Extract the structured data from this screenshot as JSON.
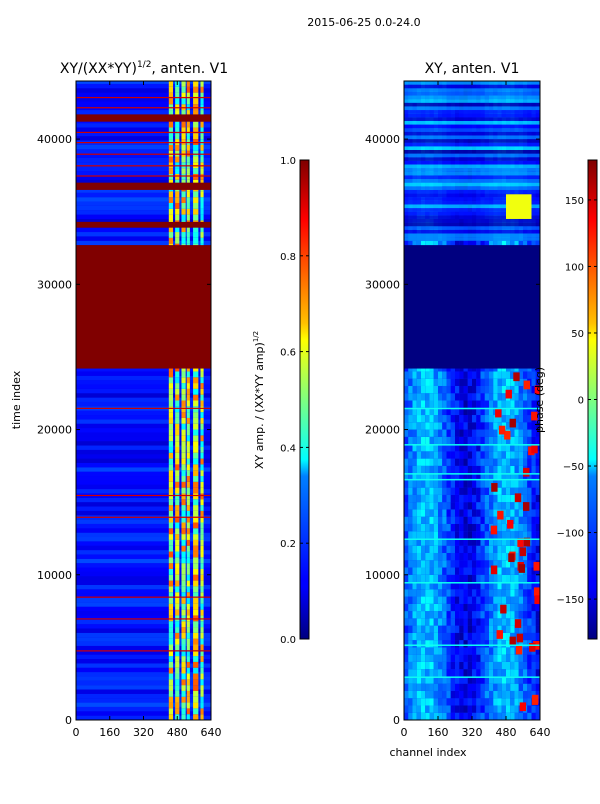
{
  "suptitle": "2015-06-25 0.0-24.0",
  "chart_data": [
    {
      "type": "heatmap",
      "title": "XY/(XX*YY)^{1/2}, anten. V1",
      "title_main": "XY/(XX*YY)",
      "title_sup": "1/2",
      "title_tail": ", anten. V1",
      "xlabel": "",
      "ylabel": "time index",
      "xlim": [
        0,
        640
      ],
      "ylim": [
        0,
        44000
      ],
      "xticks": [
        "0",
        "160",
        "320",
        "480",
        "640"
      ],
      "xtick_values": [
        0,
        160,
        320,
        480,
        640
      ],
      "yticks": [
        "0",
        "10000",
        "20000",
        "30000",
        "40000"
      ],
      "ytick_values": [
        0,
        10000,
        20000,
        30000,
        40000
      ],
      "colorbar": {
        "label_main": "XY amp. / (XX*YY amp)",
        "label_sup": "1/2",
        "range": [
          0.0,
          1.0
        ],
        "ticks": [
          "0.0",
          "0.2",
          "0.4",
          "0.6",
          "0.8",
          "1.0"
        ],
        "tick_values": [
          0.0,
          0.2,
          0.4,
          0.6,
          0.8,
          1.0
        ]
      },
      "saturated_time_bands": [
        [
          24200,
          32700
        ],
        [
          36500,
          37000
        ],
        [
          41200,
          41700
        ],
        [
          33900,
          34300
        ]
      ],
      "background_level": 0.1,
      "band_level": 1.0
    },
    {
      "type": "heatmap",
      "title": "XY, anten. V1",
      "xlabel": "channel index",
      "ylabel": "",
      "xlim": [
        0,
        640
      ],
      "ylim": [
        0,
        44000
      ],
      "xticks": [
        "0",
        "160",
        "320",
        "480",
        "640"
      ],
      "xtick_values": [
        0,
        160,
        320,
        480,
        640
      ],
      "yticks": [
        "0",
        "10000",
        "20000",
        "30000",
        "40000"
      ],
      "ytick_values": [
        0,
        10000,
        20000,
        30000,
        40000
      ],
      "colorbar": {
        "label": "phase (deg)",
        "range": [
          -180,
          180
        ],
        "ticks": [
          "−150",
          "−100",
          "−50",
          "0",
          "50",
          "100",
          "150"
        ],
        "tick_values": [
          -150,
          -100,
          -50,
          0,
          50,
          100,
          150
        ]
      },
      "saturated_time_bands": [
        [
          24200,
          32700
        ]
      ],
      "band_level": -180
    }
  ],
  "colors": {
    "jet_dark_blue": "#00007f",
    "jet_blue": "#0000ff",
    "jet_cyan": "#00ffff",
    "jet_yellow": "#ffff00",
    "jet_red": "#ff0000",
    "jet_dark_red": "#7f0000"
  }
}
